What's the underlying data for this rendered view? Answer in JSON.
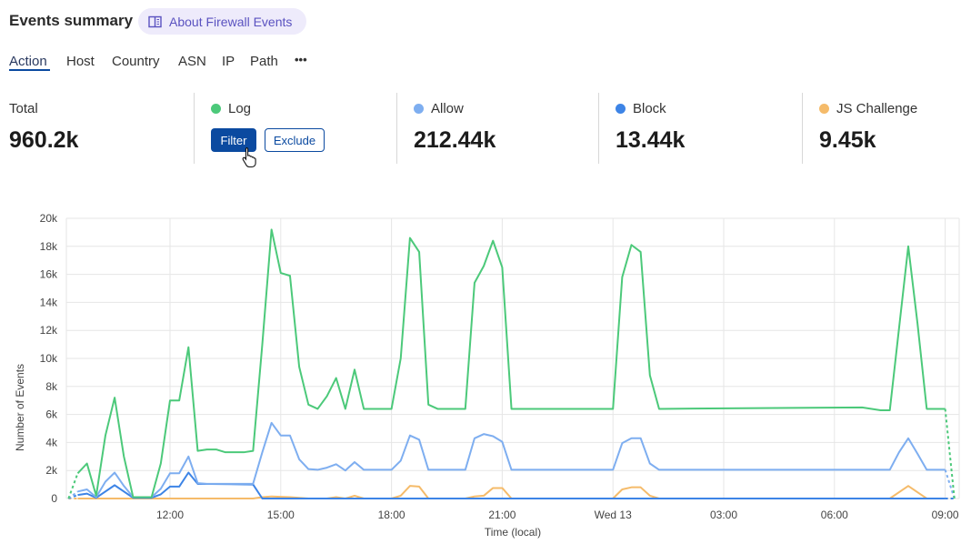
{
  "header": {
    "title": "Events summary",
    "about_link": "About Firewall Events",
    "about_icon": "book-icon"
  },
  "tabs": [
    {
      "label": "Action",
      "active": true
    },
    {
      "label": "Host"
    },
    {
      "label": "Country"
    },
    {
      "label": "ASN"
    },
    {
      "label": "IP"
    },
    {
      "label": "Path"
    },
    {
      "label": "•••"
    }
  ],
  "stats": {
    "total": {
      "label": "Total",
      "value": "960.2k"
    },
    "log": {
      "label": "Log",
      "color": "#4cc97a",
      "filter_label": "Filter",
      "exclude_label": "Exclude"
    },
    "allow": {
      "label": "Allow",
      "value": "212.44k",
      "color": "#7eaef0"
    },
    "block": {
      "label": "Block",
      "value": "13.44k",
      "color": "#3d84e6"
    },
    "js_challenge": {
      "label": "JS Challenge",
      "value": "9.45k",
      "color": "#f5bb6a"
    }
  },
  "chart_data": {
    "type": "line",
    "xlabel": "Time (local)",
    "ylabel": "Number of Events",
    "ylim": [
      0,
      20000
    ],
    "y_ticks": [
      "0",
      "2k",
      "4k",
      "6k",
      "8k",
      "10k",
      "12k",
      "14k",
      "16k",
      "18k",
      "20k"
    ],
    "x_ticks": [
      {
        "label": "12:00",
        "t": "Tue 12:00"
      },
      {
        "label": "15:00",
        "t": "Tue 15:00"
      },
      {
        "label": "18:00",
        "t": "Tue 18:00"
      },
      {
        "label": "21:00",
        "t": "Tue 21:00"
      },
      {
        "label": "Wed 13",
        "t": "Wed 00:00"
      },
      {
        "label": "03:00",
        "t": "Wed 03:00"
      },
      {
        "label": "06:00",
        "t": "Wed 06:00"
      },
      {
        "label": "09:00",
        "t": "Wed 09:00"
      }
    ],
    "grid": true,
    "series": [
      {
        "name": "Log",
        "color": "#4cc97a",
        "points": [
          [
            "Tue 09:15",
            0
          ],
          [
            "Tue 09:30",
            1800
          ],
          [
            "Tue 09:45",
            2500
          ],
          [
            "Tue 10:00",
            200
          ],
          [
            "Tue 10:15",
            4500
          ],
          [
            "Tue 10:30",
            7200
          ],
          [
            "Tue 10:45",
            3000
          ],
          [
            "Tue 11:00",
            100
          ],
          [
            "Tue 11:30",
            100
          ],
          [
            "Tue 11:45",
            2500
          ],
          [
            "Tue 12:00",
            7000
          ],
          [
            "Tue 12:15",
            7000
          ],
          [
            "Tue 12:30",
            10800
          ],
          [
            "Tue 12:45",
            3400
          ],
          [
            "Tue 13:00",
            3500
          ],
          [
            "Tue 13:15",
            3500
          ],
          [
            "Tue 13:30",
            3300
          ],
          [
            "Tue 14:00",
            3300
          ],
          [
            "Tue 14:15",
            3400
          ],
          [
            "Tue 14:30",
            11000
          ],
          [
            "Tue 14:45",
            19200
          ],
          [
            "Tue 15:00",
            16100
          ],
          [
            "Tue 15:15",
            15900
          ],
          [
            "Tue 15:30",
            9400
          ],
          [
            "Tue 15:45",
            6700
          ],
          [
            "Tue 16:00",
            6400
          ],
          [
            "Tue 16:15",
            7300
          ],
          [
            "Tue 16:30",
            8600
          ],
          [
            "Tue 16:45",
            6400
          ],
          [
            "Tue 17:00",
            9200
          ],
          [
            "Tue 17:15",
            6400
          ],
          [
            "Tue 18:00",
            6400
          ],
          [
            "Tue 18:15",
            10000
          ],
          [
            "Tue 18:30",
            18600
          ],
          [
            "Tue 18:45",
            17600
          ],
          [
            "Tue 19:00",
            6700
          ],
          [
            "Tue 19:15",
            6400
          ],
          [
            "Tue 20:00",
            6400
          ],
          [
            "Tue 20:15",
            15400
          ],
          [
            "Tue 20:30",
            16600
          ],
          [
            "Tue 20:45",
            18400
          ],
          [
            "Tue 21:00",
            16500
          ],
          [
            "Tue 21:15",
            6400
          ],
          [
            "Wed 00:00",
            6400
          ],
          [
            "Wed 00:15",
            15800
          ],
          [
            "Wed 00:30",
            18100
          ],
          [
            "Wed 00:45",
            17600
          ],
          [
            "Wed 01:00",
            8800
          ],
          [
            "Wed 01:15",
            6400
          ],
          [
            "Wed 06:45",
            6500
          ],
          [
            "Wed 07:15",
            6300
          ],
          [
            "Wed 07:30",
            6300
          ],
          [
            "Wed 08:00",
            18000
          ],
          [
            "Wed 08:15",
            12500
          ],
          [
            "Wed 08:30",
            6400
          ],
          [
            "Wed 09:00",
            6400
          ],
          [
            "Wed 09:15",
            0
          ]
        ]
      },
      {
        "name": "Allow",
        "color": "#7eaef0",
        "points": [
          [
            "Tue 09:15",
            0
          ],
          [
            "Tue 09:30",
            500
          ],
          [
            "Tue 09:45",
            650
          ],
          [
            "Tue 10:00",
            100
          ],
          [
            "Tue 10:15",
            1200
          ],
          [
            "Tue 10:30",
            1850
          ],
          [
            "Tue 10:45",
            900
          ],
          [
            "Tue 11:00",
            100
          ],
          [
            "Tue 11:30",
            100
          ],
          [
            "Tue 11:45",
            700
          ],
          [
            "Tue 12:00",
            1800
          ],
          [
            "Tue 12:15",
            1800
          ],
          [
            "Tue 12:30",
            3000
          ],
          [
            "Tue 12:45",
            1100
          ],
          [
            "Tue 13:00",
            1050
          ],
          [
            "Tue 14:15",
            1050
          ],
          [
            "Tue 14:30",
            3300
          ],
          [
            "Tue 14:45",
            5400
          ],
          [
            "Tue 15:00",
            4500
          ],
          [
            "Tue 15:15",
            4500
          ],
          [
            "Tue 15:30",
            2800
          ],
          [
            "Tue 15:45",
            2100
          ],
          [
            "Tue 16:00",
            2050
          ],
          [
            "Tue 16:15",
            2200
          ],
          [
            "Tue 16:30",
            2450
          ],
          [
            "Tue 16:45",
            2000
          ],
          [
            "Tue 17:00",
            2600
          ],
          [
            "Tue 17:15",
            2050
          ],
          [
            "Tue 18:00",
            2050
          ],
          [
            "Tue 18:15",
            2700
          ],
          [
            "Tue 18:30",
            4500
          ],
          [
            "Tue 18:45",
            4200
          ],
          [
            "Tue 19:00",
            2050
          ],
          [
            "Tue 20:00",
            2050
          ],
          [
            "Tue 20:15",
            4300
          ],
          [
            "Tue 20:30",
            4600
          ],
          [
            "Tue 20:45",
            4450
          ],
          [
            "Tue 21:00",
            4050
          ],
          [
            "Tue 21:15",
            2050
          ],
          [
            "Wed 00:00",
            2050
          ],
          [
            "Wed 00:15",
            3950
          ],
          [
            "Wed 00:30",
            4300
          ],
          [
            "Wed 00:45",
            4300
          ],
          [
            "Wed 01:00",
            2500
          ],
          [
            "Wed 01:15",
            2050
          ],
          [
            "Wed 07:30",
            2050
          ],
          [
            "Wed 07:45",
            3300
          ],
          [
            "Wed 08:00",
            4300
          ],
          [
            "Wed 08:15",
            3200
          ],
          [
            "Wed 08:30",
            2050
          ],
          [
            "Wed 09:00",
            2050
          ],
          [
            "Wed 09:15",
            0
          ]
        ]
      },
      {
        "name": "Block",
        "color": "#3d84e6",
        "points": [
          [
            "Tue 09:15",
            0
          ],
          [
            "Tue 09:30",
            250
          ],
          [
            "Tue 09:45",
            350
          ],
          [
            "Tue 10:00",
            50
          ],
          [
            "Tue 10:30",
            950
          ],
          [
            "Tue 11:00",
            50
          ],
          [
            "Tue 11:30",
            50
          ],
          [
            "Tue 11:45",
            300
          ],
          [
            "Tue 12:00",
            850
          ],
          [
            "Tue 12:15",
            850
          ],
          [
            "Tue 12:30",
            1850
          ],
          [
            "Tue 12:45",
            1050
          ],
          [
            "Tue 14:15",
            1000
          ],
          [
            "Tue 14:30",
            0
          ],
          [
            "Wed 09:00",
            0
          ],
          [
            "Wed 09:15",
            0
          ]
        ]
      },
      {
        "name": "JS Challenge",
        "color": "#f5bb6a",
        "points": [
          [
            "Tue 09:15",
            0
          ],
          [
            "Tue 09:30",
            0
          ],
          [
            "Tue 14:15",
            0
          ],
          [
            "Tue 14:30",
            100
          ],
          [
            "Tue 14:45",
            150
          ],
          [
            "Tue 15:15",
            100
          ],
          [
            "Tue 15:45",
            0
          ],
          [
            "Tue 16:15",
            0
          ],
          [
            "Tue 16:30",
            100
          ],
          [
            "Tue 16:45",
            0
          ],
          [
            "Tue 17:00",
            200
          ],
          [
            "Tue 17:15",
            0
          ],
          [
            "Tue 18:00",
            0
          ],
          [
            "Tue 18:15",
            200
          ],
          [
            "Tue 18:30",
            900
          ],
          [
            "Tue 18:45",
            850
          ],
          [
            "Tue 19:00",
            0
          ],
          [
            "Tue 20:00",
            0
          ],
          [
            "Tue 20:15",
            150
          ],
          [
            "Tue 20:30",
            200
          ],
          [
            "Tue 20:45",
            750
          ],
          [
            "Tue 21:00",
            750
          ],
          [
            "Tue 21:15",
            0
          ],
          [
            "Wed 00:00",
            0
          ],
          [
            "Wed 00:15",
            650
          ],
          [
            "Wed 00:30",
            800
          ],
          [
            "Wed 00:45",
            800
          ],
          [
            "Wed 01:00",
            200
          ],
          [
            "Wed 01:15",
            0
          ],
          [
            "Wed 07:30",
            0
          ],
          [
            "Wed 08:00",
            900
          ],
          [
            "Wed 08:30",
            0
          ],
          [
            "Wed 09:00",
            0
          ],
          [
            "Wed 09:15",
            0
          ]
        ]
      }
    ]
  }
}
